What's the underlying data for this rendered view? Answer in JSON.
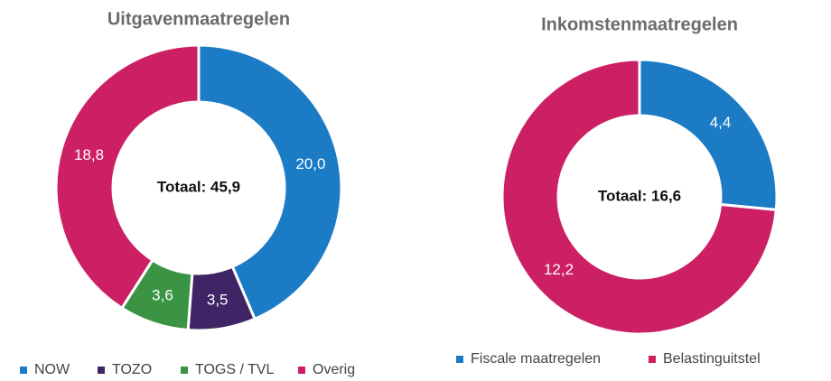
{
  "chart_data": [
    {
      "type": "donut",
      "title": "Uitgavenmaatregelen",
      "center_label": "Totaal: 45,9",
      "categories": [
        "NOW",
        "TOZO",
        "TOGS / TVL",
        "Overig"
      ],
      "values": [
        20.0,
        3.5,
        3.6,
        18.8
      ],
      "value_labels": [
        "20,0",
        "3,5",
        "3,6",
        "18,8"
      ],
      "colors": [
        "#1b7bc4",
        "#3f2565",
        "#3a9443",
        "#cc1f64"
      ]
    },
    {
      "type": "donut",
      "title": "Inkomstenmaatregelen",
      "center_label": "Totaal: 16,6",
      "categories": [
        "Fiscale maatregelen",
        "Belastinguitstel"
      ],
      "values": [
        4.4,
        12.2
      ],
      "value_labels": [
        "4,4",
        "12,2"
      ],
      "colors": [
        "#1b7bc4",
        "#cc1f64"
      ]
    }
  ]
}
